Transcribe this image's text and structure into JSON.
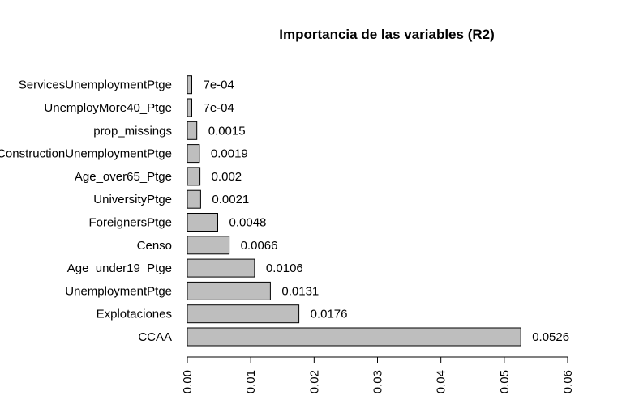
{
  "chart_data": {
    "type": "bar",
    "orientation": "horizontal",
    "title": "Importancia de las variables (R2)",
    "xlabel": "",
    "ylabel": "",
    "categories": [
      "CCAA",
      "Explotaciones",
      "UnemploymentPtge",
      "Age_under19_Ptge",
      "Censo",
      "ForeignersPtge",
      "UniversityPtge",
      "Age_over65_Ptge",
      "ConstructionUnemploymentPtge",
      "prop_missings",
      "UnemployMore40_Ptge",
      "ServicesUnemploymentPtge"
    ],
    "values": [
      0.0526,
      0.0176,
      0.0131,
      0.0106,
      0.0066,
      0.0048,
      0.0021,
      0.002,
      0.0019,
      0.0015,
      0.0007,
      0.0007
    ],
    "value_labels": [
      "0.0526",
      "0.0176",
      "0.0131",
      "0.0106",
      "0.0066",
      "0.0048",
      "0.0021",
      "0.002",
      "0.0019",
      "0.0015",
      "7e-04",
      "7e-04"
    ],
    "xlim": [
      0,
      0.06
    ],
    "xticks": [
      "0.00",
      "0.01",
      "0.02",
      "0.03",
      "0.04",
      "0.05",
      "0.06"
    ],
    "tick_values": [
      0,
      0.01,
      0.02,
      0.03,
      0.04,
      0.05,
      0.06
    ],
    "bar_color": "#bebebe",
    "grid": false
  }
}
